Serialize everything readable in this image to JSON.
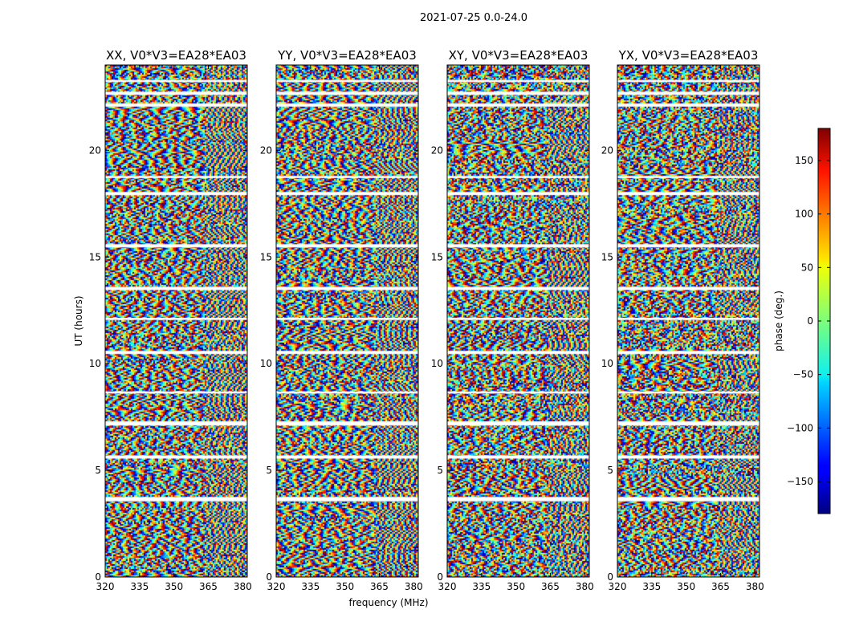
{
  "figure": {
    "suptitle": "2021-07-25 0.0-24.0"
  },
  "chart_data": [
    {
      "type": "heatmap",
      "title": "XX, V0*V3=EA28*EA03",
      "xlabel": "frequency (MHz)",
      "ylabel": "UT (hours)",
      "xlim": [
        320,
        382
      ],
      "ylim": [
        0,
        24
      ],
      "xticks": [
        320,
        335,
        350,
        365,
        380
      ],
      "yticks": [
        0,
        5,
        10,
        15,
        20
      ],
      "value": "phase (deg.)",
      "value_range": [
        -180,
        180
      ],
      "colormap": "jet"
    },
    {
      "type": "heatmap",
      "title": "YY, V0*V3=EA28*EA03",
      "xlabel": "frequency (MHz)",
      "ylabel": "",
      "xlim": [
        320,
        382
      ],
      "ylim": [
        0,
        24
      ],
      "xticks": [
        320,
        335,
        350,
        365,
        380
      ],
      "yticks": [
        0,
        5,
        10,
        15,
        20
      ],
      "value": "phase (deg.)",
      "value_range": [
        -180,
        180
      ],
      "colormap": "jet"
    },
    {
      "type": "heatmap",
      "title": "XY, V0*V3=EA28*EA03",
      "xlabel": "",
      "ylabel": "",
      "xlim": [
        320,
        382
      ],
      "ylim": [
        0,
        24
      ],
      "xticks": [
        320,
        335,
        350,
        365,
        380
      ],
      "yticks": [
        0,
        5,
        10,
        15,
        20
      ],
      "value": "phase (deg.)",
      "value_range": [
        -180,
        180
      ],
      "colormap": "jet"
    },
    {
      "type": "heatmap",
      "title": "YX, V0*V3=EA28*EA03",
      "xlabel": "",
      "ylabel": "",
      "xlim": [
        320,
        382
      ],
      "ylim": [
        0,
        24
      ],
      "xticks": [
        320,
        335,
        350,
        365,
        380
      ],
      "yticks": [
        0,
        5,
        10,
        15,
        20
      ],
      "value": "phase (deg.)",
      "value_range": [
        -180,
        180
      ],
      "colormap": "jet"
    }
  ],
  "shared": {
    "flagged_ut_gaps": [
      [
        3.55,
        3.75
      ],
      [
        5.55,
        5.7
      ],
      [
        7.1,
        7.3
      ],
      [
        8.6,
        8.7
      ],
      [
        10.45,
        10.6
      ],
      [
        12.05,
        12.15
      ],
      [
        13.45,
        13.6
      ],
      [
        15.45,
        15.6
      ],
      [
        17.9,
        18.05
      ],
      [
        18.7,
        18.8
      ],
      [
        22.05,
        22.2
      ],
      [
        22.6,
        22.75
      ],
      [
        23.2,
        23.3
      ]
    ],
    "rfi_edge_mhz": 363
  },
  "colorbar": {
    "label": "phase (deg.)",
    "range": [
      -180,
      180
    ],
    "ticks": [
      -150,
      -100,
      -50,
      0,
      50,
      100,
      150
    ],
    "tick_labels": [
      "−150",
      "−100",
      "−50",
      "0",
      "50",
      "100",
      "150"
    ],
    "colormap": "jet"
  }
}
